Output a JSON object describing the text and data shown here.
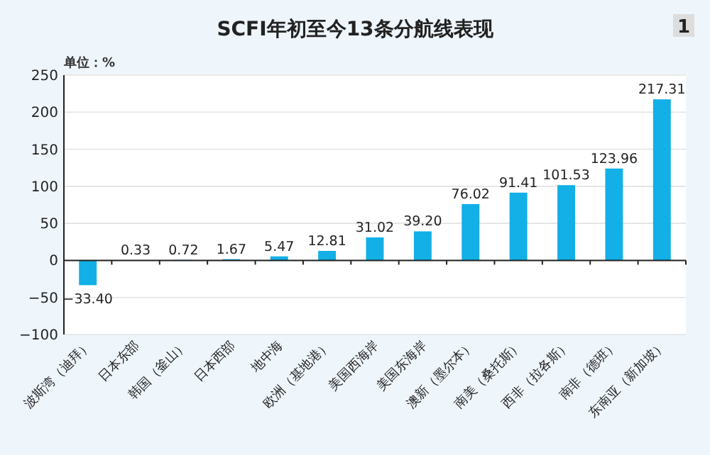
{
  "chart_data": {
    "type": "bar",
    "title": "SCFI年初至今13条分航线表现",
    "ylabel": "单位：%",
    "annotations": [
      "1"
    ],
    "categories": [
      "波斯湾（迪拜）",
      "日本东部",
      "韩国（釜山）",
      "日本西部",
      "地中海",
      "欧洲（基地港）",
      "美国西海岸",
      "美国东海岸",
      "澳新（墨尔本）",
      "南美（桑托斯）",
      "西非（拉各斯）",
      "南非（德班）",
      "东南亚（新加坡）"
    ],
    "values": [
      -33.4,
      0.33,
      0.72,
      1.67,
      5.47,
      12.81,
      31.02,
      39.2,
      76.02,
      91.41,
      101.53,
      123.96,
      217.31
    ],
    "value_labels": [
      "−33.40",
      "0.33",
      "0.72",
      "1.67",
      "5.47",
      "12.81",
      "31.02",
      "39.20",
      "76.02",
      "91.41",
      "101.53",
      "123.96",
      "217.31"
    ],
    "color": "#12b0e6",
    "ylim": [
      -100,
      250
    ],
    "yticks": [
      -100,
      -50,
      0,
      50,
      100,
      150,
      200,
      250
    ],
    "grid": "y"
  }
}
